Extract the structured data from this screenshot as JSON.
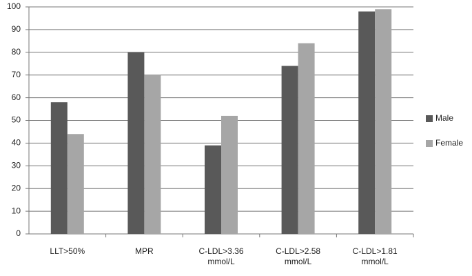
{
  "chart_data": {
    "type": "bar",
    "categories": [
      "LLT>50%",
      "MPR",
      "C-LDL>3.36 mmol/L",
      "C-LDL>2.58 mmol/L",
      "C-LDL>1.81 mmol/L"
    ],
    "series": [
      {
        "name": "Male",
        "color": "#595959",
        "values": [
          58,
          80,
          39,
          74,
          98
        ]
      },
      {
        "name": "Female",
        "color": "#a6a6a6",
        "values": [
          44,
          70,
          52,
          84,
          99
        ]
      }
    ],
    "ylim": [
      0,
      100
    ],
    "yticks": [
      0,
      10,
      20,
      30,
      40,
      50,
      60,
      70,
      80,
      90,
      100
    ],
    "grid": true,
    "legend": "right"
  }
}
